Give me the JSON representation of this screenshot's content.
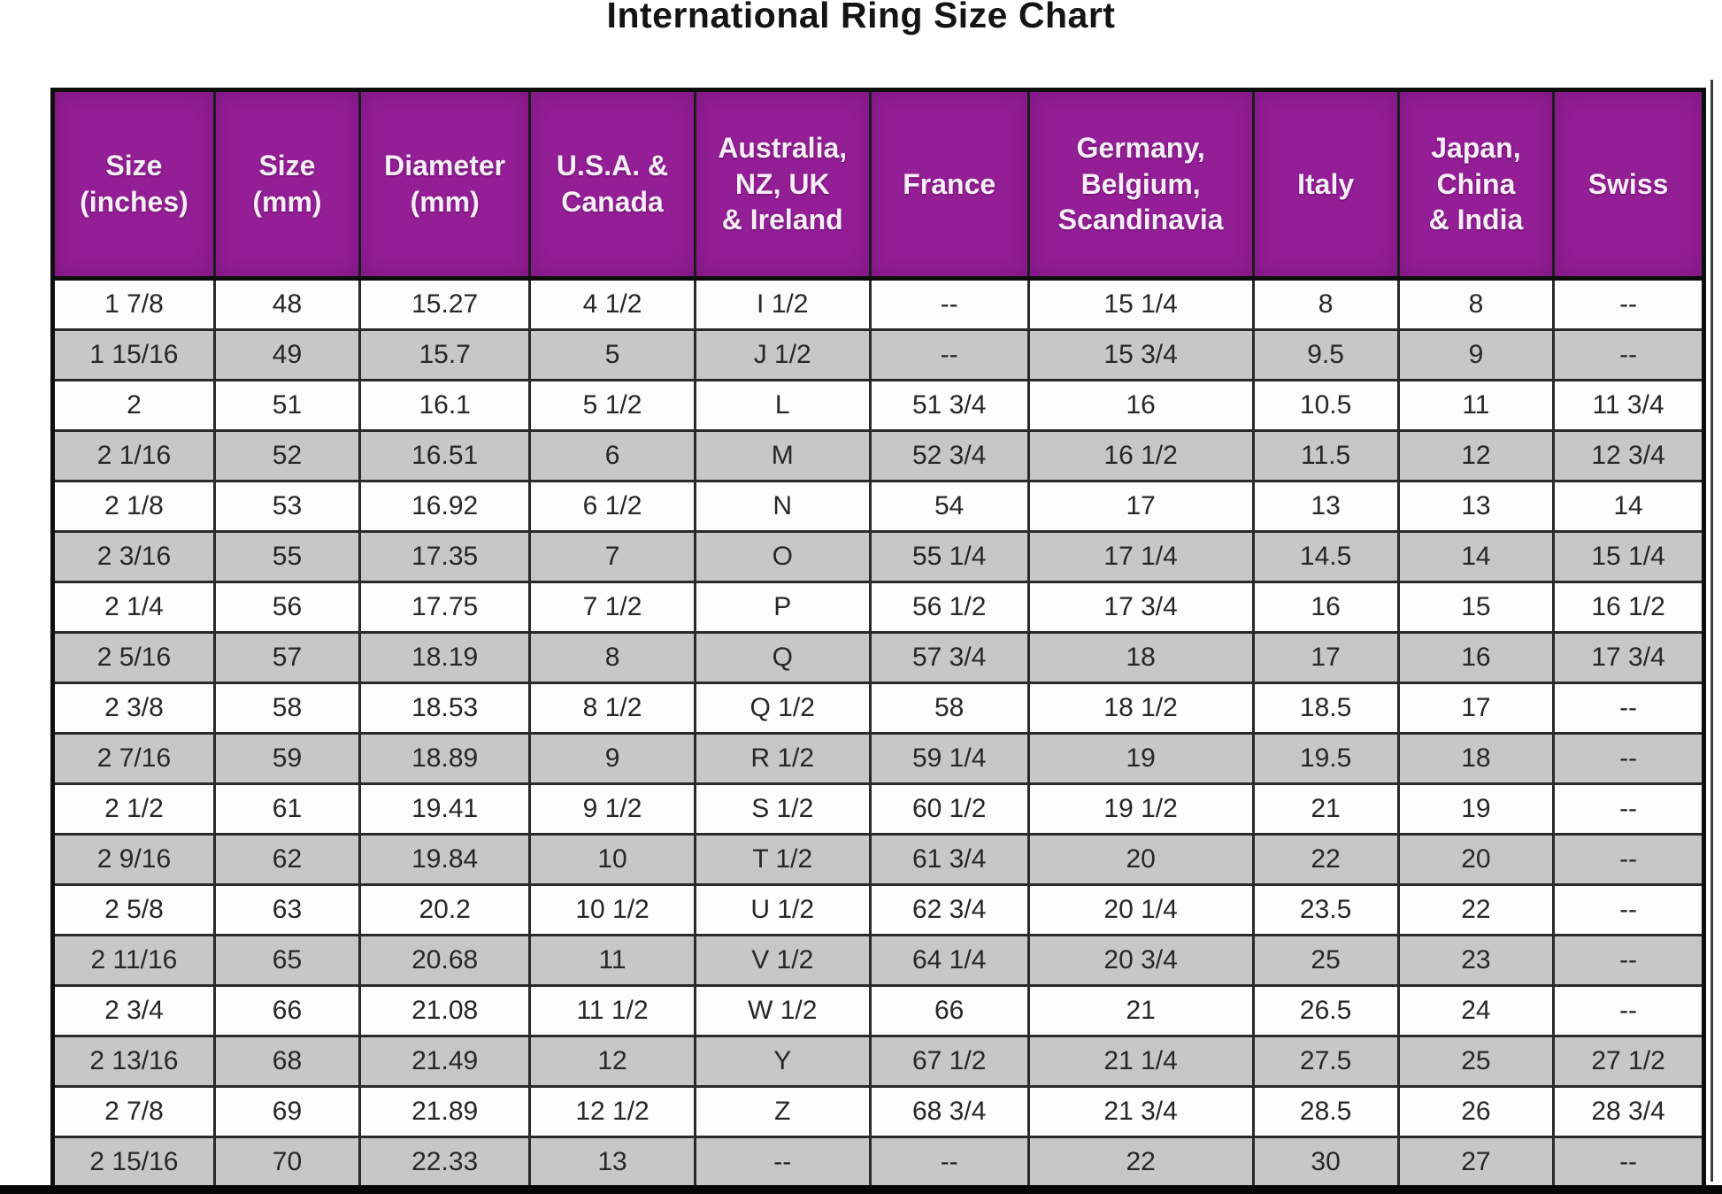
{
  "title": "International Ring Size Chart",
  "colors": {
    "header_bg": "#941e96",
    "header_text": "#ffffff",
    "row_alt_gray": "#c7c7c7",
    "row_white": "#fdfdfd",
    "border": "#1c1c1c"
  },
  "chart_data": {
    "type": "table",
    "title": "International Ring Size Chart",
    "columns": [
      "Size\n(inches)",
      "Size\n(mm)",
      "Diameter\n(mm)",
      "U.S.A. &\nCanada",
      "Australia,\nNZ, UK\n& Ireland",
      "France",
      "Germany,\nBelgium,\nScandinavia",
      "Italy",
      "Japan,\nChina\n& India",
      "Swiss"
    ],
    "rows": [
      [
        "1 7/8",
        "48",
        "15.27",
        "4 1/2",
        "I 1/2",
        "--",
        "15 1/4",
        "8",
        "8",
        "--"
      ],
      [
        "1 15/16",
        "49",
        "15.7",
        "5",
        "J 1/2",
        "--",
        "15 3/4",
        "9.5",
        "9",
        "--"
      ],
      [
        "2",
        "51",
        "16.1",
        "5 1/2",
        "L",
        "51 3/4",
        "16",
        "10.5",
        "11",
        "11 3/4"
      ],
      [
        "2 1/16",
        "52",
        "16.51",
        "6",
        "M",
        "52 3/4",
        "16 1/2",
        "11.5",
        "12",
        "12 3/4"
      ],
      [
        "2 1/8",
        "53",
        "16.92",
        "6 1/2",
        "N",
        "54",
        "17",
        "13",
        "13",
        "14"
      ],
      [
        "2 3/16",
        "55",
        "17.35",
        "7",
        "O",
        "55 1/4",
        "17 1/4",
        "14.5",
        "14",
        "15 1/4"
      ],
      [
        "2 1/4",
        "56",
        "17.75",
        "7 1/2",
        "P",
        "56 1/2",
        "17 3/4",
        "16",
        "15",
        "16 1/2"
      ],
      [
        "2 5/16",
        "57",
        "18.19",
        "8",
        "Q",
        "57 3/4",
        "18",
        "17",
        "16",
        "17 3/4"
      ],
      [
        "2 3/8",
        "58",
        "18.53",
        "8 1/2",
        "Q 1/2",
        "58",
        "18 1/2",
        "18.5",
        "17",
        "--"
      ],
      [
        "2 7/16",
        "59",
        "18.89",
        "9",
        "R 1/2",
        "59 1/4",
        "19",
        "19.5",
        "18",
        "--"
      ],
      [
        "2 1/2",
        "61",
        "19.41",
        "9 1/2",
        "S 1/2",
        "60 1/2",
        "19 1/2",
        "21",
        "19",
        "--"
      ],
      [
        "2 9/16",
        "62",
        "19.84",
        "10",
        "T 1/2",
        "61 3/4",
        "20",
        "22",
        "20",
        "--"
      ],
      [
        "2 5/8",
        "63",
        "20.2",
        "10 1/2",
        "U 1/2",
        "62 3/4",
        "20 1/4",
        "23.5",
        "22",
        "--"
      ],
      [
        "2 11/16",
        "65",
        "20.68",
        "11",
        "V 1/2",
        "64 1/4",
        "20 3/4",
        "25",
        "23",
        "--"
      ],
      [
        "2 3/4",
        "66",
        "21.08",
        "11 1/2",
        "W 1/2",
        "66",
        "21",
        "26.5",
        "24",
        "--"
      ],
      [
        "2 13/16",
        "68",
        "21.49",
        "12",
        "Y",
        "67 1/2",
        "21 1/4",
        "27.5",
        "25",
        "27 1/2"
      ],
      [
        "2 7/8",
        "69",
        "21.89",
        "12 1/2",
        "Z",
        "68 3/4",
        "21 3/4",
        "28.5",
        "26",
        "28 3/4"
      ],
      [
        "2 15/16",
        "70",
        "22.33",
        "13",
        "--",
        "--",
        "22",
        "30",
        "27",
        "--"
      ]
    ]
  }
}
